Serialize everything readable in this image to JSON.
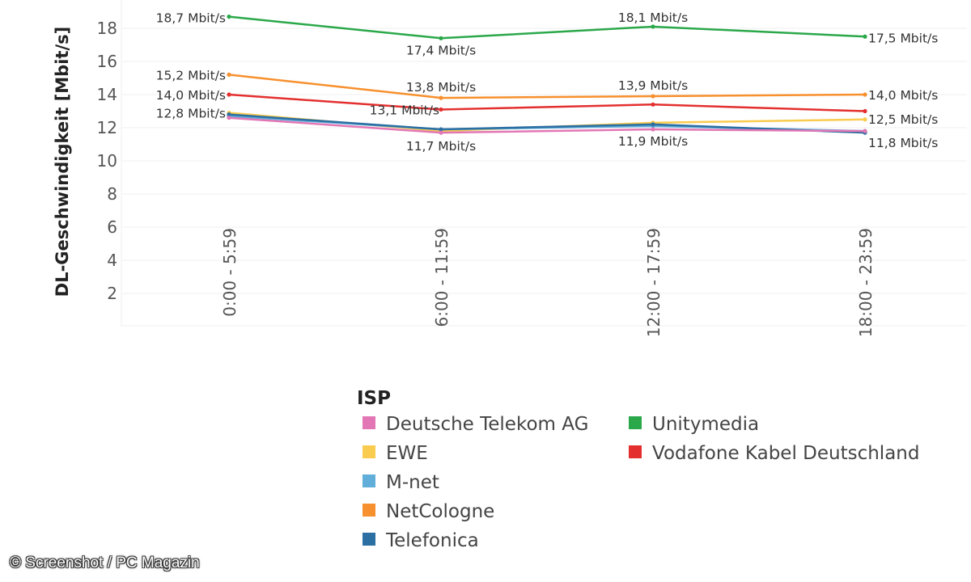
{
  "chart_data": {
    "type": "line",
    "ylabel": "DL-Geschwindigkeit [Mbit/s]",
    "xlabel": "",
    "ylim": [
      0,
      19
    ],
    "y_ticks": [
      2,
      4,
      6,
      8,
      10,
      12,
      14,
      16,
      18
    ],
    "grid": true,
    "categories": [
      "0:00 - 5:59",
      "6:00 - 11:59",
      "12:00 - 17:59",
      "18:00 - 23:59"
    ],
    "legend": {
      "title": "ISP",
      "placement": "bottom"
    },
    "series": [
      {
        "name": "Deutsche Telekom AG",
        "color": "#E377B5",
        "values": [
          12.6,
          11.7,
          11.9,
          11.8
        ]
      },
      {
        "name": "EWE",
        "color": "#F9CB4E",
        "values": [
          12.9,
          11.8,
          12.3,
          12.5
        ]
      },
      {
        "name": "M-net",
        "color": "#62AEDA",
        "values": [
          12.7,
          11.9,
          12.1,
          11.8
        ]
      },
      {
        "name": "NetCologne",
        "color": "#F7902E",
        "values": [
          15.2,
          13.8,
          13.9,
          14.0
        ]
      },
      {
        "name": "Telefonica",
        "color": "#2C6FA3",
        "values": [
          12.8,
          11.9,
          12.2,
          11.7
        ]
      },
      {
        "name": "Unitymedia",
        "color": "#2BA84A",
        "values": [
          18.7,
          17.4,
          18.1,
          17.5
        ]
      },
      {
        "name": "Vodafone Kabel Deutschland",
        "color": "#E3302F",
        "values": [
          14.0,
          13.1,
          13.4,
          13.0
        ]
      }
    ],
    "annotations": [
      {
        "text": "18,7 Mbit/s",
        "series": "Unitymedia",
        "index": 0
      },
      {
        "text": "17,4 Mbit/s",
        "series": "Unitymedia",
        "index": 1
      },
      {
        "text": "18,1 Mbit/s",
        "series": "Unitymedia",
        "index": 2
      },
      {
        "text": "17,5 Mbit/s",
        "series": "Unitymedia",
        "index": 3
      },
      {
        "text": "15,2 Mbit/s",
        "series": "NetCologne",
        "index": 0
      },
      {
        "text": "13,8 Mbit/s",
        "series": "NetCologne",
        "index": 1
      },
      {
        "text": "13,9 Mbit/s",
        "series": "NetCologne",
        "index": 2
      },
      {
        "text": "14,0 Mbit/s",
        "series": "NetCologne",
        "index": 3
      },
      {
        "text": "14,0 Mbit/s",
        "series": "Vodafone Kabel Deutschland",
        "index": 0
      },
      {
        "text": "13,1 Mbit/s",
        "series": "Vodafone Kabel Deutschland",
        "index": 1
      },
      {
        "text": "12,8 Mbit/s",
        "series": "Telefonica",
        "index": 0
      },
      {
        "text": "11,7 Mbit/s",
        "series": "Deutsche Telekom AG",
        "index": 1
      },
      {
        "text": "11,9 Mbit/s",
        "series": "Deutsche Telekom AG",
        "index": 2
      },
      {
        "text": "12,5 Mbit/s",
        "series": "EWE",
        "index": 3
      },
      {
        "text": "11,8 Mbit/s",
        "series": "Deutsche Telekom AG",
        "index": 3
      }
    ]
  },
  "watermark": "© Screenshot / PC Magazin"
}
